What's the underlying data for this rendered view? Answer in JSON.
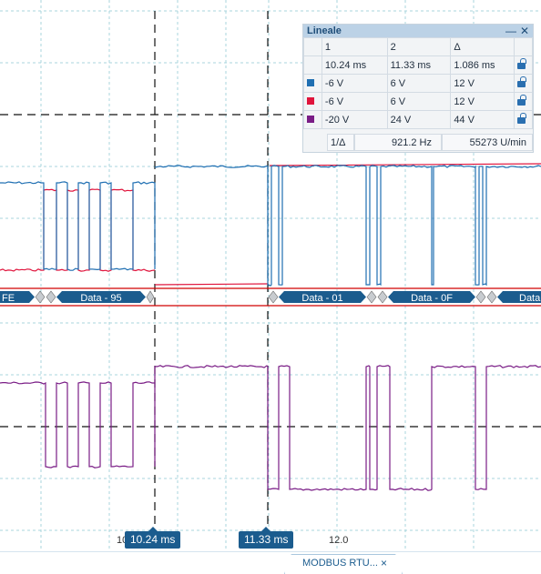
{
  "ruler": {
    "title": "Lineale",
    "minimize": "—",
    "close": "✕",
    "header": [
      "1",
      "2",
      "Δ"
    ],
    "time_row": [
      "10.24 ms",
      "11.33 ms",
      "1.086 ms"
    ],
    "channels": [
      {
        "color": "#1f6fb2",
        "v1": "-6 V",
        "v2": "6 V",
        "delta": "12 V"
      },
      {
        "color": "#e0143c",
        "v1": "-6 V",
        "v2": "6 V",
        "delta": "12 V"
      },
      {
        "color": "#7a1d86",
        "v1": "-20 V",
        "v2": "24 V",
        "delta": "44 V"
      }
    ],
    "freq_label": "1/Δ",
    "freq": "921.2 Hz",
    "rpm": "55273 U/min"
  },
  "decoder": {
    "bar_color": "#d00000",
    "segments": [
      "FE",
      "Data - 95",
      "Data - 01",
      "Data - 0F",
      "Data -"
    ]
  },
  "axis": {
    "left_tick": "10",
    "mid_tick": "12.0"
  },
  "markers": [
    {
      "label": "10.24 ms"
    },
    {
      "label": "11.33 ms"
    }
  ],
  "bottom_tab": {
    "label": "MODBUS RTU...",
    "close": "×"
  },
  "colors": {
    "ch1": "#1f6fb2",
    "ch2": "#e0143c",
    "ch3": "#7a1d86",
    "grid": "#a8d4dc",
    "cursor": "#111111"
  }
}
